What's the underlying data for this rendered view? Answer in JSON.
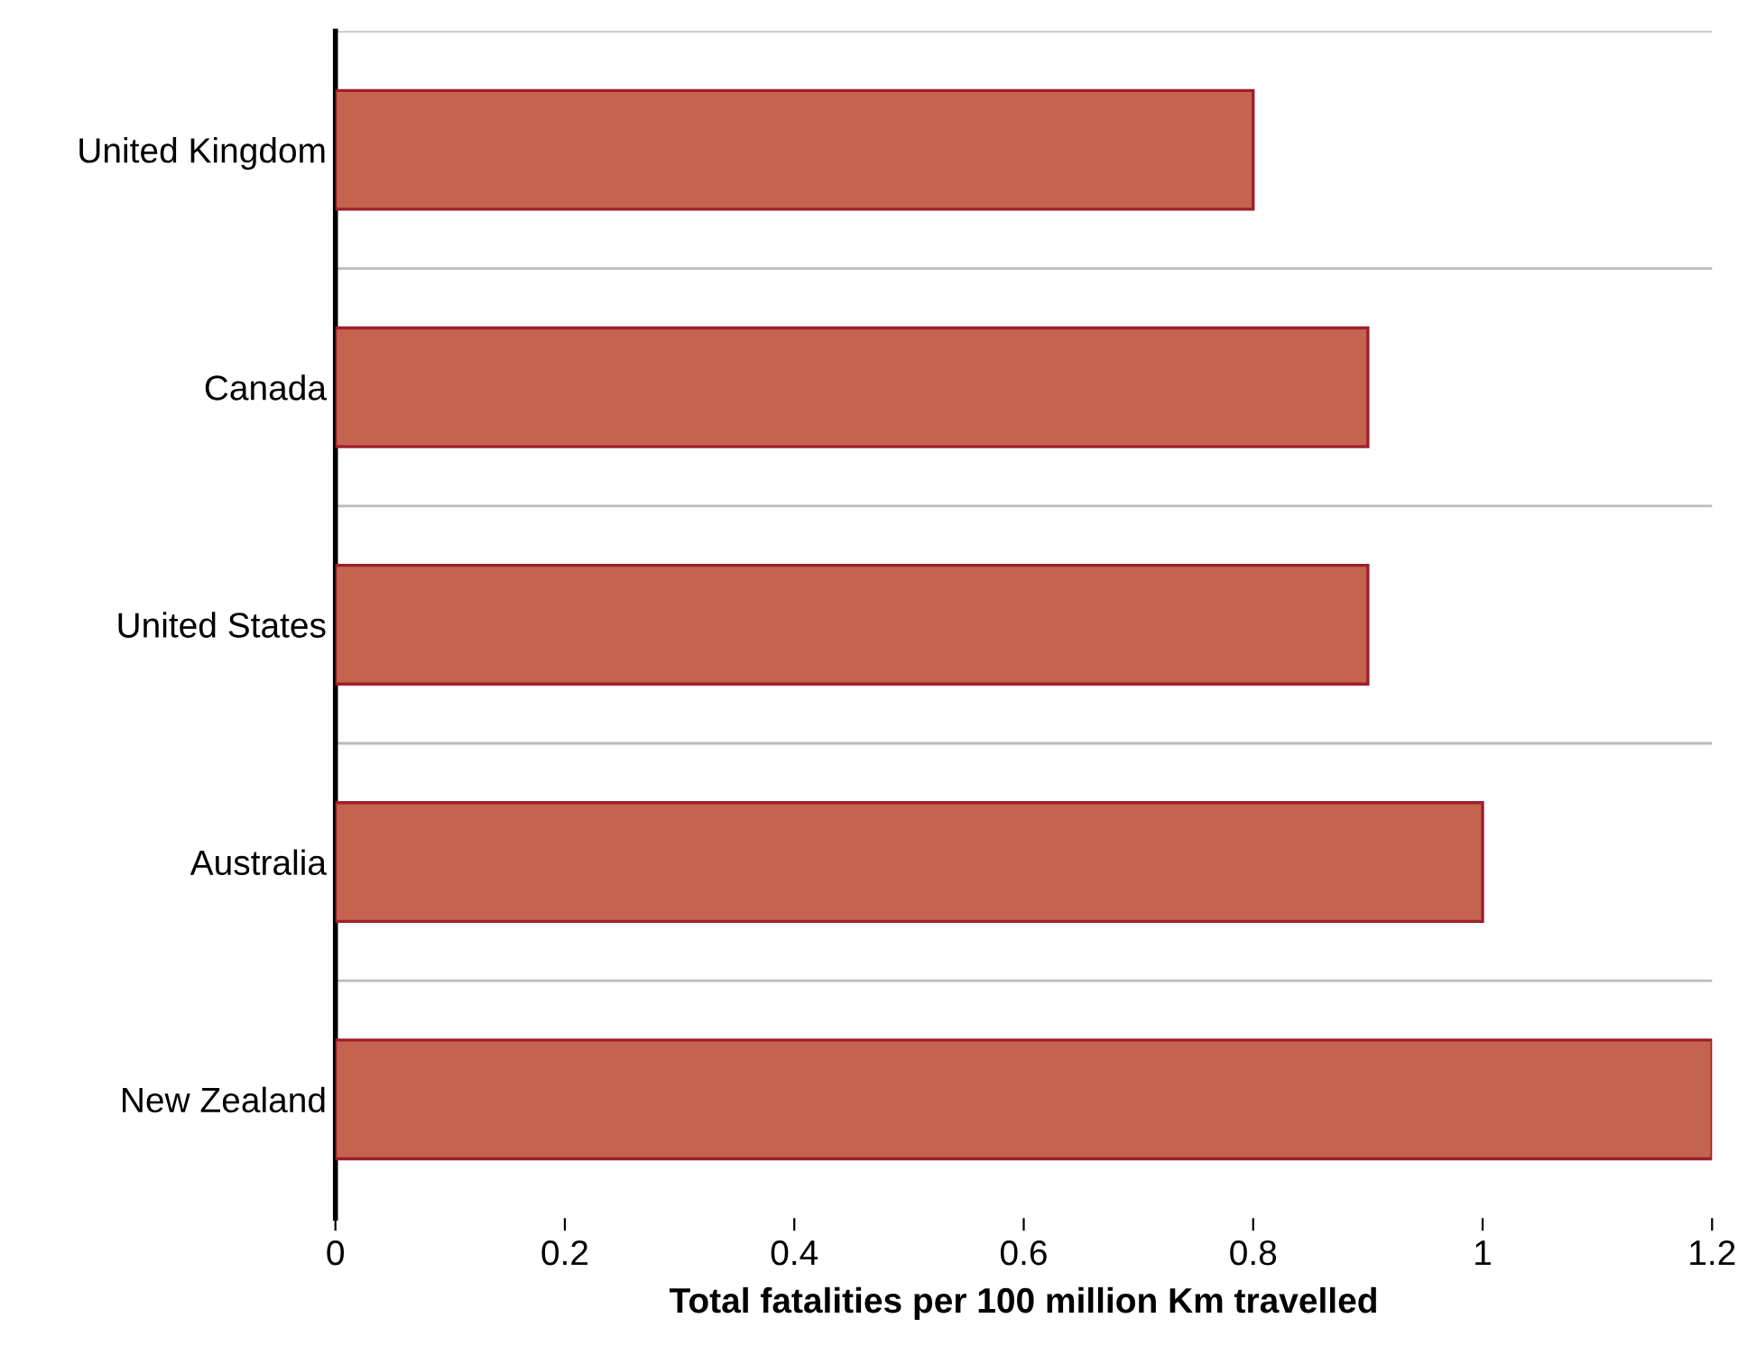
{
  "chart_data": {
    "type": "bar",
    "orientation": "horizontal",
    "xlabel": "Total fatalities per 100 million Km travelled",
    "categories": [
      "United Kingdom",
      "Canada",
      "United States",
      "Australia",
      "New Zealand"
    ],
    "values": [
      0.8,
      0.9,
      0.9,
      1,
      1.2
    ],
    "color": "#c4644f",
    "xlim": [
      0,
      1.2
    ],
    "xticks": [
      0,
      0.2,
      0.4,
      0.6,
      0.8,
      1,
      1.2
    ],
    "grid": "y",
    "legend": false
  }
}
